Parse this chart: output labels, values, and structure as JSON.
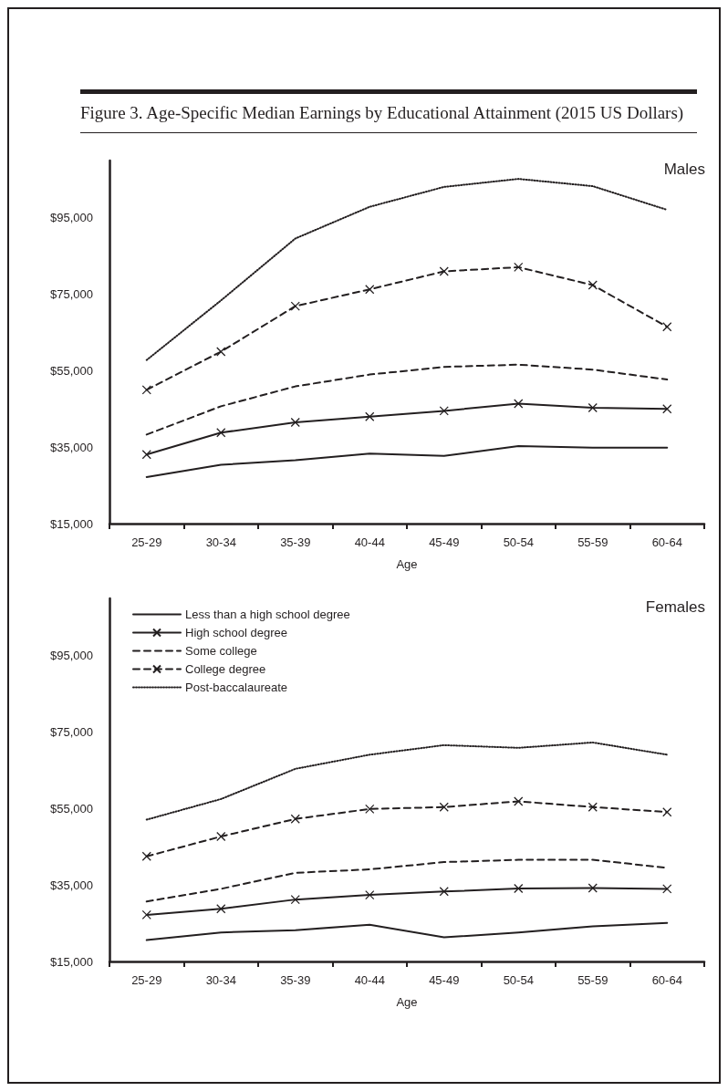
{
  "chart_data": [
    {
      "type": "line",
      "title": "Figure 3. Age-Specific Median Earnings by Educational Attainment (2015 US Dollars)",
      "subtitle": "Males",
      "xlabel": "Age",
      "categories": [
        "25-29",
        "30-34",
        "35-39",
        "40-44",
        "45-49",
        "50-54",
        "55-59",
        "60-64"
      ],
      "series": [
        {
          "color": "#231f20",
          "marker": "none",
          "line_style": "solid",
          "values": [
            27200,
            30400,
            31600,
            33300,
            32700,
            35300,
            34900,
            34900
          ]
        },
        {
          "color": "#231f20",
          "marker": "cross",
          "line_style": "solid",
          "values": [
            33100,
            38800,
            41500,
            43000,
            44500,
            46400,
            45300,
            45000
          ]
        },
        {
          "color": "#231f20",
          "marker": "none",
          "line_style": "dashed",
          "values": [
            38300,
            45700,
            50900,
            54000,
            56000,
            56600,
            55300,
            52700
          ]
        },
        {
          "color": "#231f20",
          "marker": "cross",
          "line_style": "dashed",
          "values": [
            50000,
            60000,
            71900,
            76300,
            81000,
            82100,
            77400,
            66500
          ]
        },
        {
          "color": "#231f20",
          "marker": "none",
          "line_style": "dotted",
          "values": [
            57800,
            73400,
            89600,
            97900,
            103100,
            105200,
            103300,
            97100
          ]
        }
      ],
      "ylim": [
        15000,
        110000
      ],
      "yticks": [
        {
          "value": 15000,
          "label": "$15,000"
        },
        {
          "value": 35000,
          "label": "$35,000"
        },
        {
          "value": 55000,
          "label": "$55,000"
        },
        {
          "value": 75000,
          "label": "$75,000"
        },
        {
          "value": 95000,
          "label": "$95,000"
        }
      ],
      "grid": false,
      "legend": false
    },
    {
      "type": "line",
      "subtitle": "Females",
      "xlabel": "Age",
      "categories": [
        "25-29",
        "30-34",
        "35-39",
        "40-44",
        "45-49",
        "50-54",
        "55-59",
        "60-64"
      ],
      "series": [
        {
          "name": "Less than a high school degree",
          "color": "#231f20",
          "marker": "none",
          "line_style": "solid",
          "values": [
            20600,
            22600,
            23200,
            24600,
            21300,
            22600,
            24200,
            25100
          ]
        },
        {
          "name": "High school degree",
          "color": "#231f20",
          "marker": "cross",
          "line_style": "solid",
          "values": [
            27200,
            28800,
            31200,
            32400,
            33300,
            34100,
            34200,
            34000
          ]
        },
        {
          "name": "Some college",
          "color": "#231f20",
          "marker": "none",
          "line_style": "dashed",
          "values": [
            30700,
            34000,
            38200,
            39100,
            41000,
            41600,
            41600,
            39500
          ]
        },
        {
          "name": "College degree",
          "color": "#231f20",
          "marker": "cross",
          "line_style": "dashed",
          "values": [
            42500,
            47700,
            52300,
            54900,
            55400,
            56900,
            55400,
            54100
          ]
        },
        {
          "name": "Post-baccalaureate",
          "color": "#231f20",
          "marker": "none",
          "line_style": "dotted",
          "values": [
            52100,
            57500,
            65400,
            69100,
            71600,
            70900,
            72300,
            69100
          ]
        }
      ],
      "ylim": [
        15000,
        110000
      ],
      "yticks": [
        {
          "value": 15000,
          "label": "$15,000"
        },
        {
          "value": 35000,
          "label": "$35,000"
        },
        {
          "value": 55000,
          "label": "$55,000"
        },
        {
          "value": 75000,
          "label": "$75,000"
        },
        {
          "value": 95000,
          "label": "$95,000"
        }
      ],
      "grid": false,
      "legend": "top left"
    }
  ]
}
